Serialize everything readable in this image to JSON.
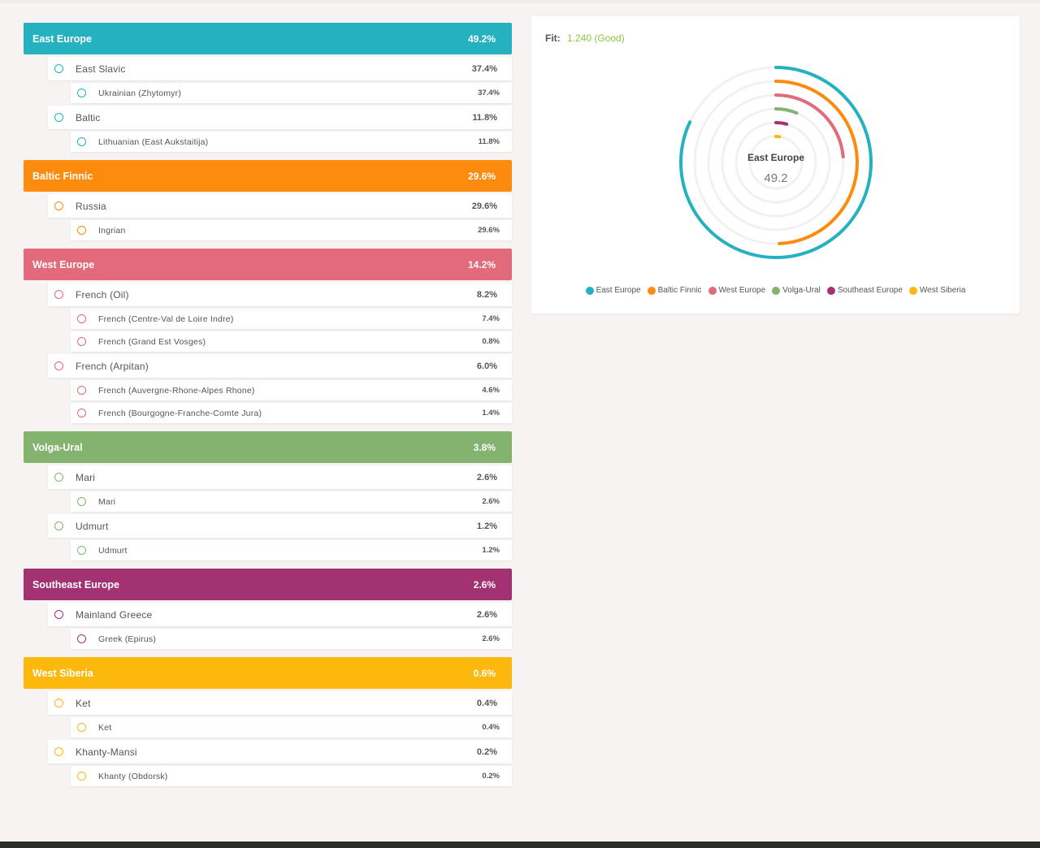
{
  "fit": {
    "label": "Fit:",
    "value": "1.240 (Good)"
  },
  "chart_data": {
    "type": "radial-bar",
    "center": {
      "name": "East Europe",
      "value": "49.2"
    },
    "max": 60,
    "series": [
      {
        "name": "East Europe",
        "value": 49.2,
        "color": "#25b1bf"
      },
      {
        "name": "Baltic Finnic",
        "value": 29.6,
        "color": "#fd8b0d"
      },
      {
        "name": "West Europe",
        "value": 14.2,
        "color": "#e26a7a"
      },
      {
        "name": "Volga-Ural",
        "value": 3.8,
        "color": "#84b26f"
      },
      {
        "name": "Southeast Europe",
        "value": 2.6,
        "color": "#a33272"
      },
      {
        "name": "West Siberia",
        "value": 0.6,
        "color": "#fdb80e"
      }
    ]
  },
  "groups": [
    {
      "name": "East Europe",
      "pct": "49.2%",
      "color": "#25b1bf",
      "subs": [
        {
          "name": "East Slavic",
          "pct": "37.4%",
          "items": [
            {
              "name": "Ukrainian (Zhytomyr)",
              "pct": "37.4%"
            }
          ]
        },
        {
          "name": "Baltic",
          "pct": "11.8%",
          "items": [
            {
              "name": "Lithuanian (East Aukstaitija)",
              "pct": "11.8%"
            }
          ]
        }
      ]
    },
    {
      "name": "Baltic Finnic",
      "pct": "29.6%",
      "color": "#fd8b0d",
      "subs": [
        {
          "name": "Russia",
          "pct": "29.6%",
          "items": [
            {
              "name": "Ingrian",
              "pct": "29.6%"
            }
          ]
        }
      ]
    },
    {
      "name": "West Europe",
      "pct": "14.2%",
      "color": "#e26a7a",
      "subs": [
        {
          "name": "French (Oil)",
          "pct": "8.2%",
          "items": [
            {
              "name": "French (Centre-Val de Loire Indre)",
              "pct": "7.4%"
            },
            {
              "name": "French (Grand Est Vosges)",
              "pct": "0.8%"
            }
          ]
        },
        {
          "name": "French (Arpitan)",
          "pct": "6.0%",
          "items": [
            {
              "name": "French (Auvergne-Rhone-Alpes Rhone)",
              "pct": "4.6%"
            },
            {
              "name": "French (Bourgogne-Franche-Comte Jura)",
              "pct": "1.4%"
            }
          ]
        }
      ]
    },
    {
      "name": "Volga-Ural",
      "pct": "3.8%",
      "color": "#84b26f",
      "subs": [
        {
          "name": "Mari",
          "pct": "2.6%",
          "items": [
            {
              "name": "Mari",
              "pct": "2.6%"
            }
          ]
        },
        {
          "name": "Udmurt",
          "pct": "1.2%",
          "items": [
            {
              "name": "Udmurt",
              "pct": "1.2%"
            }
          ]
        }
      ]
    },
    {
      "name": "Southeast Europe",
      "pct": "2.6%",
      "color": "#a33272",
      "subs": [
        {
          "name": "Mainland Greece",
          "pct": "2.6%",
          "items": [
            {
              "name": "Greek (Epirus)",
              "pct": "2.6%"
            }
          ]
        }
      ]
    },
    {
      "name": "West Siberia",
      "pct": "0.6%",
      "color": "#fdb80e",
      "subs": [
        {
          "name": "Ket",
          "pct": "0.4%",
          "items": [
            {
              "name": "Ket",
              "pct": "0.4%"
            }
          ]
        },
        {
          "name": "Khanty-Mansi",
          "pct": "0.2%",
          "items": [
            {
              "name": "Khanty (Obdorsk)",
              "pct": "0.2%"
            }
          ]
        }
      ]
    }
  ]
}
